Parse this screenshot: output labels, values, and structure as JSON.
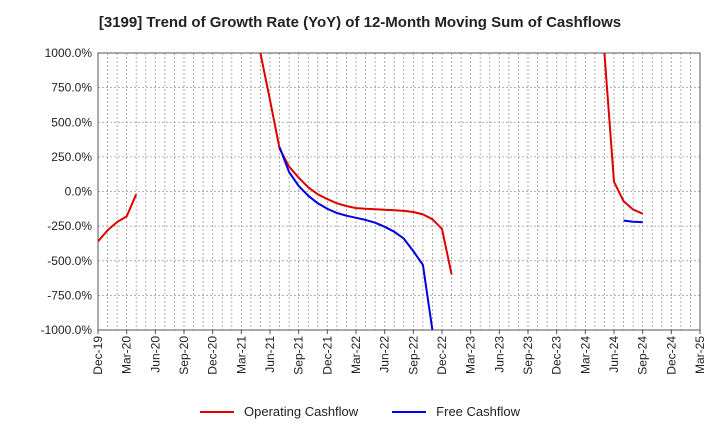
{
  "chart_data": {
    "type": "line",
    "title": "[3199]  Trend of Growth Rate (YoY) of 12-Month Moving Sum of Cashflows",
    "xlabel": "",
    "ylabel": "",
    "ylim": [
      -1000,
      1000
    ],
    "y_ticks": [
      "1000.0%",
      "750.0%",
      "500.0%",
      "250.0%",
      "0.0%",
      "-250.0%",
      "-500.0%",
      "-750.0%",
      "-1000.0%"
    ],
    "y_tick_values": [
      1000,
      750,
      500,
      250,
      0,
      -250,
      -500,
      -750,
      -1000
    ],
    "x_tick_labels": [
      "Dec-19",
      "Mar-20",
      "Jun-20",
      "Sep-20",
      "Dec-20",
      "Mar-21",
      "Jun-21",
      "Sep-21",
      "Dec-21",
      "Mar-22",
      "Jun-22",
      "Sep-22",
      "Dec-22",
      "Mar-23",
      "Jun-23",
      "Sep-23",
      "Dec-23",
      "Mar-24",
      "Jun-24",
      "Sep-24",
      "Dec-24",
      "Mar-25"
    ],
    "grid": true,
    "legend_position": "bottom",
    "series": [
      {
        "name": "Operating Cashflow",
        "color": "#e00000",
        "segments": [
          [
            [
              "2019-12",
              -360
            ],
            [
              "2020-01",
              -280
            ],
            [
              "2020-02",
              -220
            ],
            [
              "2020-03",
              -180
            ],
            [
              "2020-04",
              -20
            ]
          ],
          [
            [
              "2021-05",
              1000
            ],
            [
              "2021-06",
              660
            ],
            [
              "2021-07",
              310
            ],
            [
              "2021-08",
              180
            ],
            [
              "2021-09",
              100
            ],
            [
              "2021-10",
              30
            ],
            [
              "2021-11",
              -20
            ],
            [
              "2021-12",
              -55
            ],
            [
              "2022-01",
              -85
            ],
            [
              "2022-02",
              -105
            ],
            [
              "2022-03",
              -120
            ],
            [
              "2022-04",
              -125
            ],
            [
              "2022-05",
              -128
            ],
            [
              "2022-06",
              -132
            ],
            [
              "2022-07",
              -136
            ],
            [
              "2022-08",
              -140
            ],
            [
              "2022-09",
              -148
            ],
            [
              "2022-10",
              -165
            ],
            [
              "2022-11",
              -200
            ],
            [
              "2022-12",
              -270
            ],
            [
              "2023-01",
              -600
            ]
          ],
          [
            [
              "2024-05",
              1000
            ],
            [
              "2024-06",
              70
            ],
            [
              "2024-07",
              -70
            ],
            [
              "2024-08",
              -130
            ],
            [
              "2024-09",
              -160
            ]
          ]
        ]
      },
      {
        "name": "Free Cashflow",
        "color": "#0000e0",
        "segments": [
          [
            [
              "2021-07",
              320
            ],
            [
              "2021-08",
              140
            ],
            [
              "2021-09",
              40
            ],
            [
              "2021-10",
              -30
            ],
            [
              "2021-11",
              -85
            ],
            [
              "2021-12",
              -125
            ],
            [
              "2022-01",
              -155
            ],
            [
              "2022-02",
              -175
            ],
            [
              "2022-03",
              -190
            ],
            [
              "2022-04",
              -205
            ],
            [
              "2022-05",
              -225
            ],
            [
              "2022-06",
              -255
            ],
            [
              "2022-07",
              -290
            ],
            [
              "2022-08",
              -340
            ],
            [
              "2022-09",
              -430
            ],
            [
              "2022-10",
              -530
            ],
            [
              "2022-11",
              -1000
            ]
          ],
          [
            [
              "2024-07",
              -210
            ],
            [
              "2024-08",
              -218
            ],
            [
              "2024-09",
              -222
            ]
          ]
        ]
      }
    ]
  }
}
